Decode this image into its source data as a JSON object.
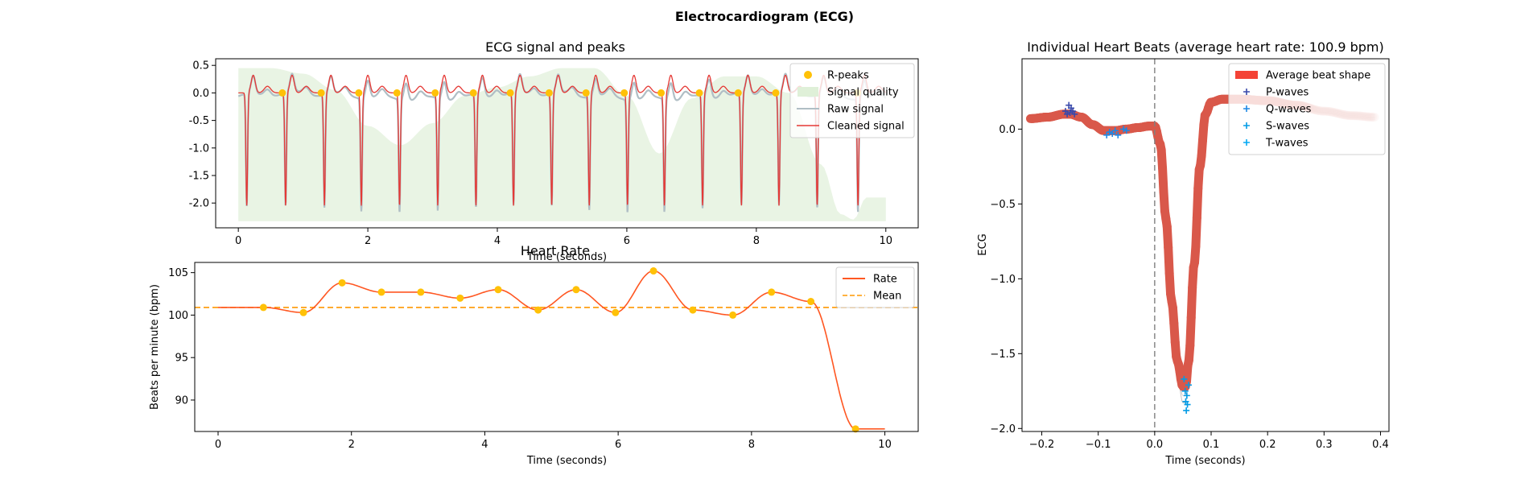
{
  "figure": {
    "title": "Electrocardiogram (ECG)"
  },
  "chart_data": [
    {
      "type": "line",
      "title": "ECG signal and peaks",
      "xlabel": "Time (seconds)",
      "ylabel": "",
      "xlim": [
        -0.35,
        10.5
      ],
      "ylim": [
        -2.45,
        0.62
      ],
      "xticks": [
        0,
        2,
        4,
        6,
        8,
        10
      ],
      "yticks": [
        0.5,
        0.0,
        -0.5,
        -1.0,
        -1.5,
        -2.0
      ],
      "legend": [
        "R-peaks",
        "Signal quality",
        "Raw signal",
        "Cleaned signal"
      ],
      "legend_position": "top-right",
      "r_peaks": {
        "name": "R-peaks",
        "x": [
          0.68,
          1.28,
          1.86,
          2.45,
          3.04,
          3.63,
          4.2,
          4.8,
          5.37,
          5.96,
          6.53,
          7.12,
          7.72,
          8.3,
          8.89,
          9.56
        ],
        "y": [
          0.0,
          0.0,
          0.0,
          0.0,
          0.0,
          0.0,
          0.0,
          0.0,
          0.0,
          0.0,
          0.0,
          0.0,
          0.0,
          0.0,
          0.0,
          0.0
        ]
      },
      "beat_onsets": [
        0.13,
        0.73,
        1.33,
        1.9,
        2.49,
        3.08,
        3.67,
        4.25,
        4.84,
        5.42,
        6.01,
        6.58,
        7.17,
        7.77,
        8.35,
        8.94,
        9.57
      ],
      "signal_quality": {
        "name": "Signal quality",
        "x": [
          0.0,
          0.5,
          1.0,
          1.5,
          2.0,
          2.5,
          3.0,
          3.5,
          4.0,
          4.5,
          5.0,
          5.5,
          6.0,
          6.5,
          7.0,
          7.5,
          8.0,
          8.5,
          9.0,
          9.3,
          9.5,
          9.7,
          10.0
        ],
        "y": [
          0.45,
          0.45,
          0.35,
          0.05,
          -0.6,
          -0.95,
          -0.55,
          -0.05,
          0.1,
          0.3,
          0.45,
          0.45,
          -0.05,
          -1.1,
          -0.1,
          0.3,
          0.3,
          0.0,
          -1.3,
          -2.2,
          -2.3,
          -1.9,
          -1.9
        ]
      }
    },
    {
      "type": "line",
      "title": "Heart Rate",
      "xlabel": "Time (seconds)",
      "ylabel": "Beats per minute (bpm)",
      "xlim": [
        -0.35,
        10.5
      ],
      "ylim": [
        86.3,
        106.2
      ],
      "xticks": [
        0,
        2,
        4,
        6,
        8,
        10
      ],
      "yticks": [
        105,
        100,
        95,
        90
      ],
      "legend": [
        "Rate",
        "Mean"
      ],
      "legend_position": "top-right",
      "mean": 100.9,
      "rate": {
        "name": "Rate",
        "x": [
          0.0,
          0.68,
          1.28,
          1.86,
          2.45,
          3.04,
          3.63,
          4.2,
          4.8,
          5.37,
          5.96,
          6.53,
          7.12,
          7.72,
          8.3,
          8.89,
          9.56,
          10.0
        ],
        "y": [
          100.9,
          100.9,
          100.3,
          103.8,
          102.7,
          102.7,
          102.0,
          103.0,
          100.6,
          103.0,
          100.3,
          105.2,
          100.6,
          100.0,
          102.7,
          101.6,
          86.6,
          86.6
        ]
      },
      "peaks": {
        "x": [
          0.68,
          1.28,
          1.86,
          2.45,
          3.04,
          3.63,
          4.2,
          4.8,
          5.37,
          5.96,
          6.53,
          7.12,
          7.72,
          8.3,
          8.89,
          9.56
        ],
        "y": [
          100.9,
          100.3,
          103.8,
          102.7,
          102.7,
          102.0,
          103.0,
          100.6,
          103.0,
          100.3,
          105.2,
          100.6,
          100.0,
          102.7,
          101.6,
          86.6
        ]
      }
    },
    {
      "type": "line",
      "title": "Individual Heart Beats (average heart rate: 100.9 bpm)",
      "xlabel": "Time (seconds)",
      "ylabel": "ECG",
      "xlim": [
        -0.235,
        0.415
      ],
      "ylim": [
        -2.02,
        0.47
      ],
      "xticks": [
        -0.2,
        -0.1,
        0.0,
        0.1,
        0.2,
        0.3,
        0.4
      ],
      "xtick_labels": [
        "−0.2",
        "−0.1",
        "0.0",
        "0.1",
        "0.2",
        "0.3",
        "0.4"
      ],
      "yticks": [
        0.0,
        -0.5,
        -1.0,
        -1.5,
        -2.0
      ],
      "ytick_labels": [
        "0.0",
        "−0.5",
        "−1.0",
        "−1.5",
        "−2.0"
      ],
      "legend": [
        "Average beat shape",
        "P-waves",
        "Q-waves",
        "S-waves",
        "T-waves"
      ],
      "legend_position": "top-right",
      "average_beat": {
        "name": "Average beat shape",
        "x": [
          -0.22,
          -0.19,
          -0.16,
          -0.15,
          -0.13,
          -0.11,
          -0.09,
          -0.07,
          -0.05,
          -0.03,
          -0.01,
          0.0,
          0.01,
          0.02,
          0.03,
          0.04,
          0.05,
          0.055,
          0.06,
          0.07,
          0.08,
          0.09,
          0.1,
          0.12,
          0.15,
          0.2,
          0.25,
          0.3,
          0.35,
          0.39
        ],
        "y": [
          0.07,
          0.08,
          0.1,
          0.1,
          0.08,
          0.03,
          -0.01,
          -0.01,
          0.0,
          0.01,
          0.02,
          0.02,
          -0.1,
          -0.6,
          -1.15,
          -1.55,
          -1.72,
          -1.72,
          -1.55,
          -0.9,
          -0.25,
          0.1,
          0.18,
          0.2,
          0.2,
          0.19,
          0.16,
          0.12,
          0.09,
          0.08
        ]
      },
      "p_waves": {
        "name": "P-waves",
        "x": [
          -0.158,
          -0.155,
          -0.152,
          -0.15,
          -0.148,
          -0.145,
          -0.142
        ],
        "y": [
          0.12,
          0.1,
          0.16,
          0.11,
          0.14,
          0.12,
          0.1
        ]
      },
      "q_waves": {
        "name": "Q-waves",
        "x": [
          -0.085,
          -0.08,
          -0.075,
          -0.07,
          -0.065,
          -0.055,
          -0.05
        ],
        "y": [
          -0.04,
          -0.02,
          -0.03,
          -0.01,
          -0.04,
          0.0,
          -0.01
        ]
      },
      "s_waves": {
        "name": "S-waves",
        "x": [
          0.052,
          0.054,
          0.055,
          0.056,
          0.057,
          0.058,
          0.06
        ],
        "y": [
          -1.67,
          -1.75,
          -1.82,
          -1.88,
          -1.78,
          -1.84,
          -1.71
        ]
      },
      "t_waves": {
        "name": "T-waves",
        "x": [],
        "y": []
      },
      "rpeak_line": 0.0
    }
  ],
  "colors": {
    "r_peaks": "#FFC107",
    "signal_quality": "#DFF0D8",
    "raw_signal": "#B0BEC5",
    "cleaned_signal": "#E53935",
    "rate": "#FF5722",
    "mean": "#FF9800",
    "avg_beat": "#D9584A",
    "p_waves": "#3949AB",
    "q_waves": "#1E88E5",
    "s_waves": "#039BE5",
    "t_waves": "#03A9F4"
  }
}
